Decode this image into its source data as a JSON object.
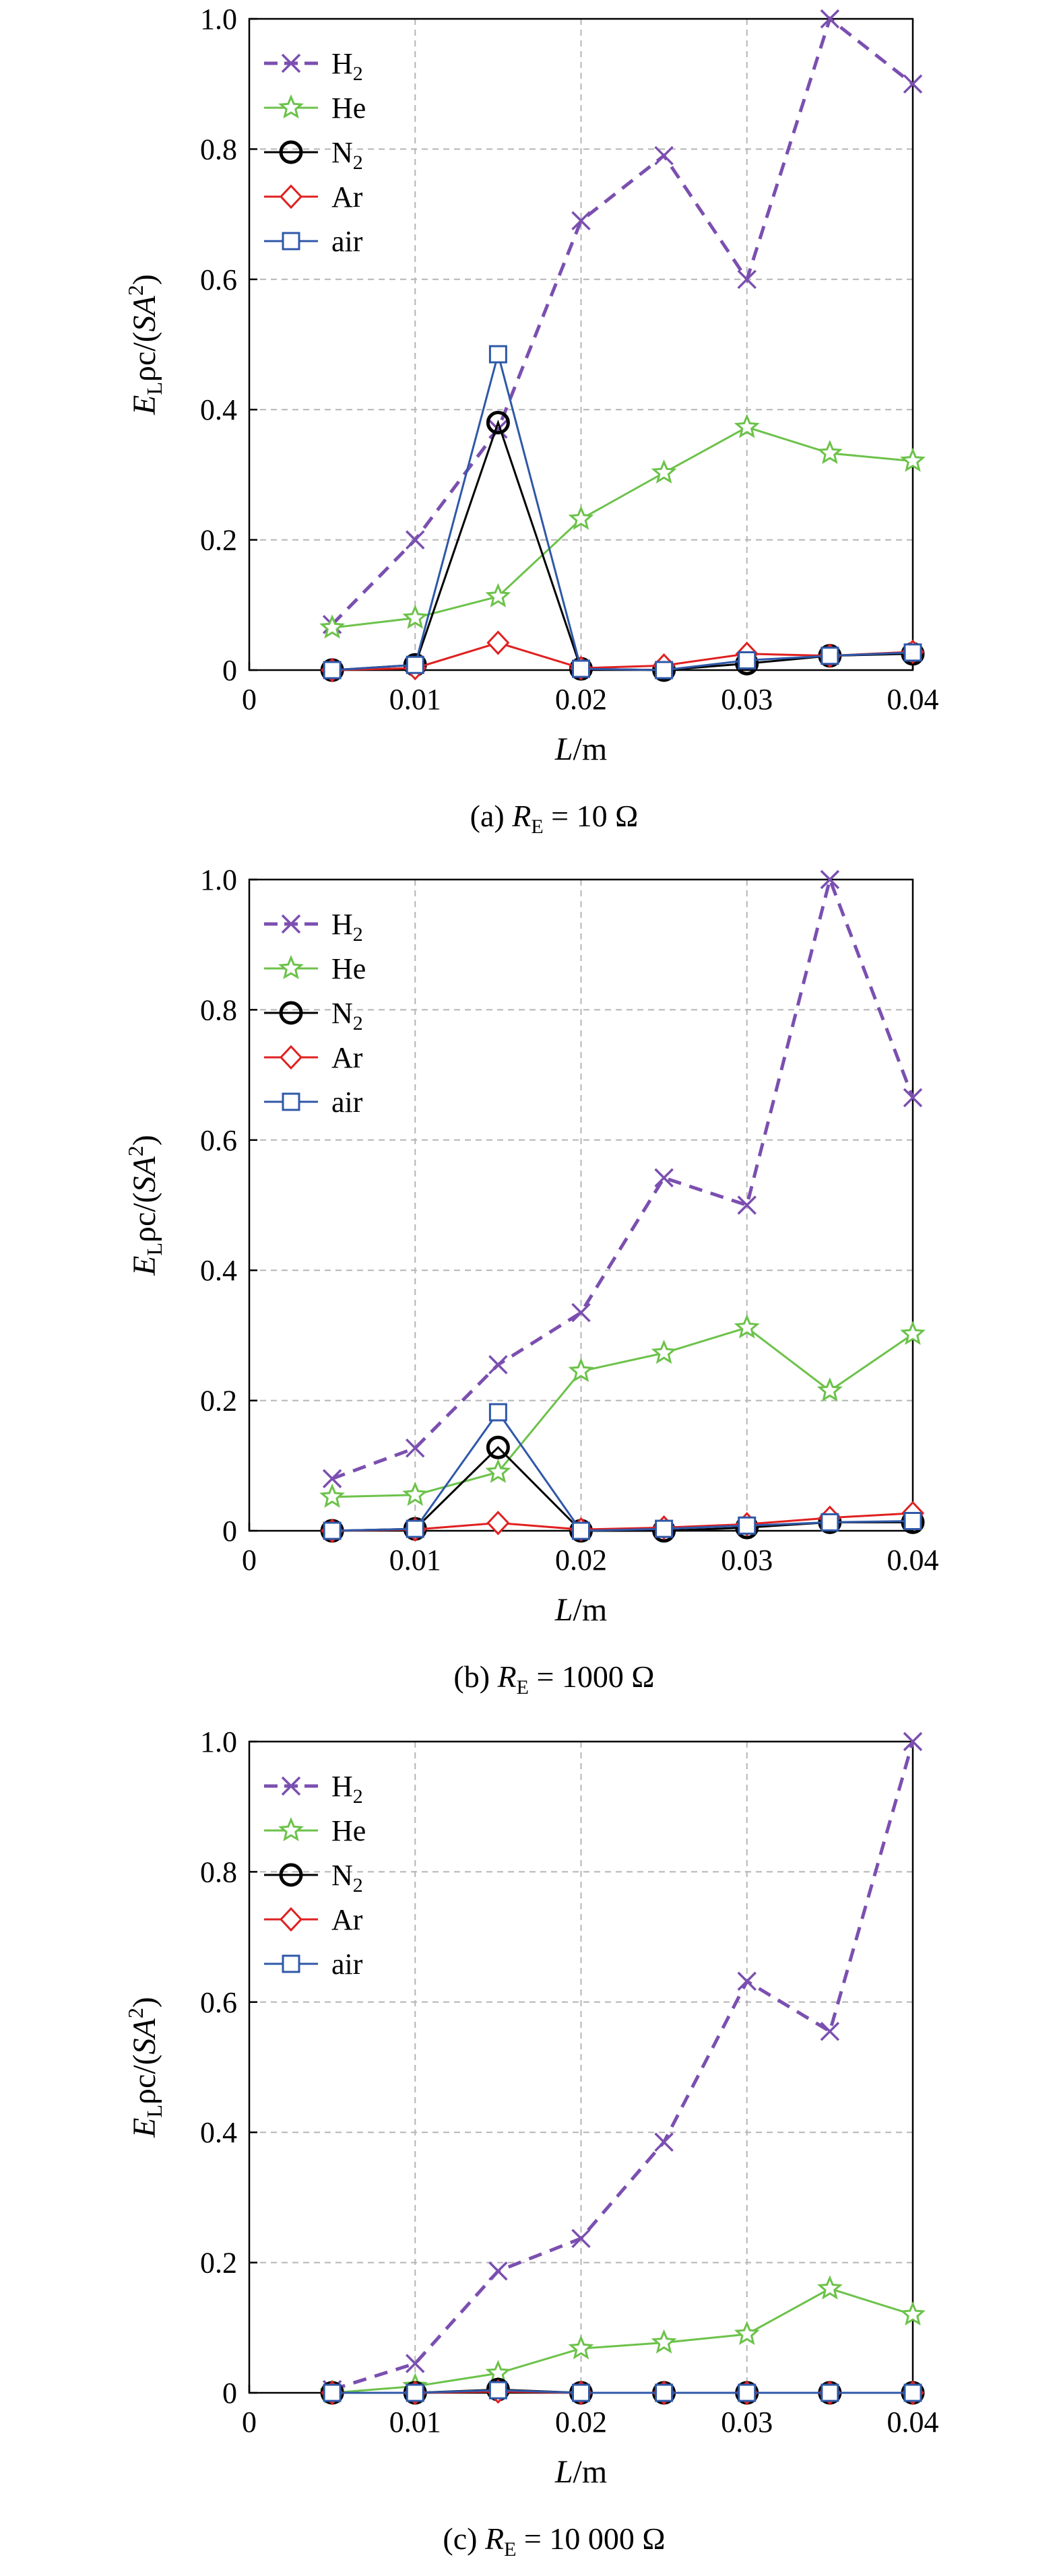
{
  "chart_data": [
    {
      "type": "line",
      "caption": {
        "prefix": "(a) ",
        "var": "R",
        "sub": "E",
        "rest": " = 10 Ω"
      },
      "xlabel": {
        "var": "L",
        "rest": "/m"
      },
      "ylabel": {
        "e": "E",
        "esub": "L",
        "mid": "ρc/(",
        "sa": "SA",
        "sup": "2",
        "end": ")"
      },
      "x": [
        0.005,
        0.01,
        0.015,
        0.02,
        0.025,
        0.03,
        0.035,
        0.04
      ],
      "xlim": [
        0,
        0.04
      ],
      "ylim": [
        0,
        1.0
      ],
      "xticks": [
        "0",
        "0.01",
        "0.02",
        "0.03",
        "0.04"
      ],
      "yticks": [
        "0",
        "0.2",
        "0.4",
        "0.6",
        "0.8",
        "1.0"
      ],
      "grid": true,
      "legend": "top-left",
      "series": [
        {
          "name": "H",
          "sub": "2",
          "color": "#7b4fb0",
          "marker": "x",
          "dash": true,
          "values": [
            0.07,
            0.2,
            0.37,
            0.69,
            0.79,
            0.6,
            1.0,
            0.9
          ]
        },
        {
          "name": "He",
          "sub": "",
          "color": "#6cc24a",
          "marker": "star",
          "dash": false,
          "values": [
            0.065,
            0.08,
            0.113,
            0.232,
            0.303,
            0.373,
            0.333,
            0.321
          ]
        },
        {
          "name": "N",
          "sub": "2",
          "color": "#000000",
          "marker": "circle",
          "dash": false,
          "values": [
            0.0,
            0.008,
            0.38,
            0.002,
            0.0,
            0.01,
            0.022,
            0.025
          ]
        },
        {
          "name": "Ar",
          "sub": "",
          "color": "#e02020",
          "marker": "diamond",
          "dash": false,
          "values": [
            0.0,
            0.003,
            0.042,
            0.003,
            0.007,
            0.025,
            0.022,
            0.028
          ]
        },
        {
          "name": "air",
          "sub": "",
          "color": "#2f58a8",
          "marker": "square",
          "dash": false,
          "values": [
            0.0,
            0.008,
            0.485,
            0.002,
            0.0,
            0.015,
            0.022,
            0.027
          ]
        }
      ]
    },
    {
      "type": "line",
      "caption": {
        "prefix": "(b) ",
        "var": "R",
        "sub": "E",
        "rest": " = 1000 Ω"
      },
      "xlabel": {
        "var": "L",
        "rest": "/m"
      },
      "ylabel": {
        "e": "E",
        "esub": "L",
        "mid": "ρc/(",
        "sa": "SA",
        "sup": "2",
        "end": ")"
      },
      "x": [
        0.005,
        0.01,
        0.015,
        0.02,
        0.025,
        0.03,
        0.035,
        0.04
      ],
      "xlim": [
        0,
        0.04
      ],
      "ylim": [
        0,
        1.0
      ],
      "xticks": [
        "0",
        "0.01",
        "0.02",
        "0.03",
        "0.04"
      ],
      "yticks": [
        "0",
        "0.2",
        "0.4",
        "0.6",
        "0.8",
        "1.0"
      ],
      "grid": true,
      "legend": "top-left",
      "series": [
        {
          "name": "H",
          "sub": "2",
          "color": "#7b4fb0",
          "marker": "x",
          "dash": true,
          "values": [
            0.08,
            0.127,
            0.255,
            0.335,
            0.542,
            0.5,
            1.0,
            0.665
          ]
        },
        {
          "name": "He",
          "sub": "",
          "color": "#6cc24a",
          "marker": "star",
          "dash": false,
          "values": [
            0.052,
            0.055,
            0.09,
            0.245,
            0.273,
            0.312,
            0.215,
            0.302
          ]
        },
        {
          "name": "N",
          "sub": "2",
          "color": "#000000",
          "marker": "circle",
          "dash": false,
          "values": [
            0.0,
            0.003,
            0.128,
            0.0,
            0.0,
            0.005,
            0.013,
            0.013
          ]
        },
        {
          "name": "Ar",
          "sub": "",
          "color": "#e02020",
          "marker": "diamond",
          "dash": false,
          "values": [
            0.0,
            0.002,
            0.012,
            0.002,
            0.005,
            0.01,
            0.02,
            0.027
          ]
        },
        {
          "name": "air",
          "sub": "",
          "color": "#2f58a8",
          "marker": "square",
          "dash": false,
          "values": [
            0.0,
            0.003,
            0.182,
            0.0,
            0.003,
            0.008,
            0.013,
            0.015
          ]
        }
      ]
    },
    {
      "type": "line",
      "caption": {
        "prefix": "(c) ",
        "var": "R",
        "sub": "E",
        "rest": " = 10 000 Ω"
      },
      "xlabel": {
        "var": "L",
        "rest": "/m"
      },
      "ylabel": {
        "e": "E",
        "esub": "L",
        "mid": "ρc/(",
        "sa": "SA",
        "sup": "2",
        "end": ")"
      },
      "x": [
        0.005,
        0.01,
        0.015,
        0.02,
        0.025,
        0.03,
        0.035,
        0.04
      ],
      "xlim": [
        0,
        0.04
      ],
      "ylim": [
        0,
        1.0
      ],
      "xticks": [
        "0",
        "0.01",
        "0.02",
        "0.03",
        "0.04"
      ],
      "yticks": [
        "0",
        "0.2",
        "0.4",
        "0.6",
        "0.8",
        "1.0"
      ],
      "grid": true,
      "legend": "top-left",
      "series": [
        {
          "name": "H",
          "sub": "2",
          "color": "#7b4fb0",
          "marker": "x",
          "dash": true,
          "values": [
            0.005,
            0.045,
            0.187,
            0.237,
            0.385,
            0.632,
            0.555,
            1.0
          ]
        },
        {
          "name": "He",
          "sub": "",
          "color": "#6cc24a",
          "marker": "star",
          "dash": false,
          "values": [
            0.0,
            0.01,
            0.03,
            0.068,
            0.077,
            0.09,
            0.16,
            0.12
          ]
        },
        {
          "name": "N",
          "sub": "2",
          "color": "#000000",
          "marker": "circle",
          "dash": false,
          "values": [
            0.0,
            0.0,
            0.005,
            0.0,
            0.0,
            0.0,
            0.0,
            0.0
          ]
        },
        {
          "name": "Ar",
          "sub": "",
          "color": "#e02020",
          "marker": "diamond",
          "dash": false,
          "values": [
            0.0,
            0.0,
            0.002,
            0.0,
            0.0,
            0.0,
            0.0,
            0.0
          ]
        },
        {
          "name": "air",
          "sub": "",
          "color": "#2f58a8",
          "marker": "square",
          "dash": false,
          "values": [
            0.0,
            0.0,
            0.004,
            0.0,
            0.0,
            0.0,
            0.0,
            0.0
          ]
        }
      ]
    }
  ]
}
